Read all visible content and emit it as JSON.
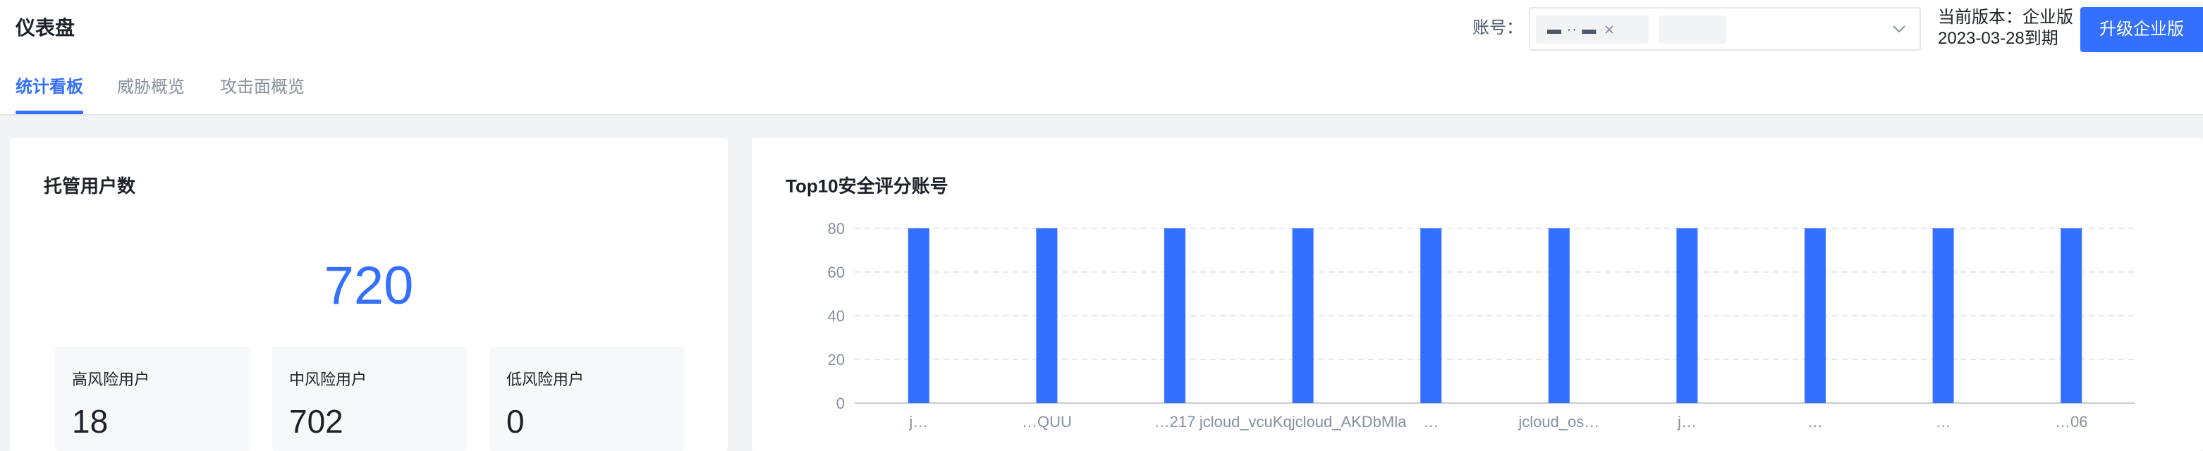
{
  "header": {
    "title": "仪表盘",
    "tabs": [
      {
        "label": "统计看板",
        "active": true
      },
      {
        "label": "威胁概览",
        "active": false
      },
      {
        "label": "攻击面概览",
        "active": false
      }
    ],
    "account_label": "账号：",
    "account_tags": [
      {
        "text": "▬ ·· ▬",
        "closable": true
      },
      {
        "text": "",
        "closable": false
      }
    ],
    "version_line1": "当前版本：企业版",
    "version_line2": "2023-03-28到期",
    "upgrade_button": "升级企业版"
  },
  "managed_users": {
    "title": "托管用户数",
    "total": "720",
    "stats": [
      {
        "label": "高风险用户",
        "value": "18"
      },
      {
        "label": "中风险用户",
        "value": "702"
      },
      {
        "label": "低风险用户",
        "value": "0"
      }
    ]
  },
  "top10": {
    "title": "Top10安全评分账号"
  },
  "colors": {
    "accent": "#3370ff",
    "bar": "#3370ff",
    "grid": "#e5e6eb"
  },
  "chart_data": {
    "type": "bar",
    "categories": [
      "j…",
      "…QUU",
      "…217",
      "jcloud_vcuKqjcloud_AKDbMla",
      "…",
      "jcloud_os…",
      "j…",
      "…",
      "…",
      "…06"
    ],
    "values": [
      80,
      80,
      80,
      80,
      80,
      80,
      80,
      80,
      80,
      80
    ],
    "title": "Top10安全评分账号",
    "xlabel": "",
    "ylabel": "",
    "ylim": [
      0,
      80
    ],
    "yticks": [
      0,
      20,
      40,
      60,
      80
    ],
    "grid": true,
    "legend": "none"
  }
}
